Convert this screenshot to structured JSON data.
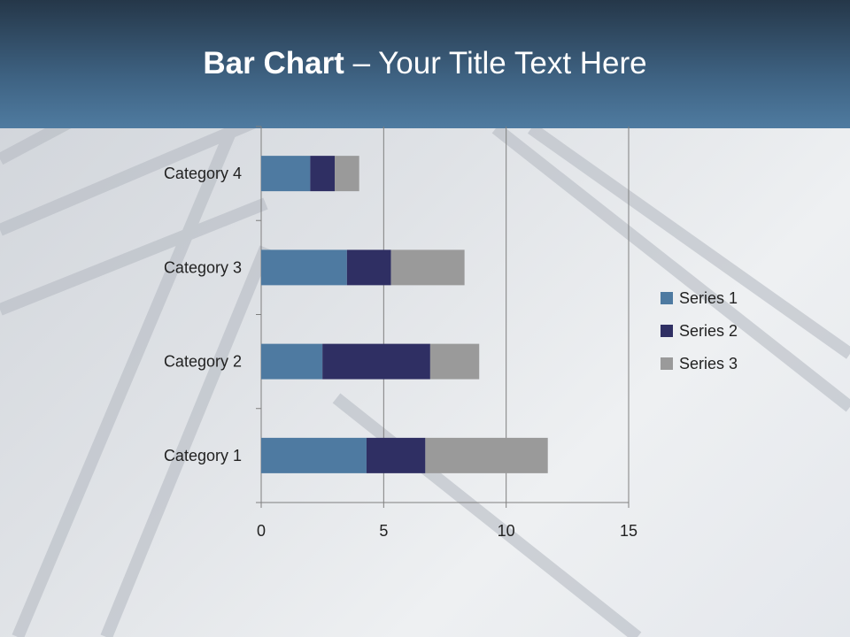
{
  "slide": {
    "title_bold": "Bar Chart",
    "title_rest": " – Your Title Text Here"
  },
  "chart_data": {
    "type": "bar",
    "orientation": "horizontal",
    "stacked": true,
    "categories": [
      "Category 1",
      "Category 2",
      "Category 3",
      "Category 4"
    ],
    "series": [
      {
        "name": "Series 1",
        "values": [
          4.3,
          2.5,
          3.5,
          2.0
        ],
        "color": "#4e7aa1"
      },
      {
        "name": "Series 2",
        "values": [
          2.4,
          4.4,
          1.8,
          1.0
        ],
        "color": "#2f2f63"
      },
      {
        "name": "Series 3",
        "values": [
          5.0,
          2.0,
          3.0,
          1.0
        ],
        "color": "#9a9a9a"
      }
    ],
    "xlim": [
      0,
      15
    ],
    "xticks": [
      "0",
      "5",
      "10",
      "15"
    ],
    "grid": "vertical major",
    "legend": "right"
  }
}
